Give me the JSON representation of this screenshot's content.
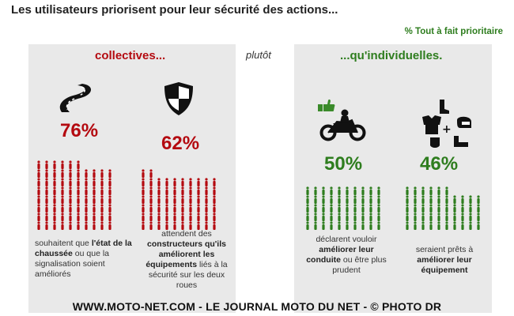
{
  "title": "Les utilisateurs priorisent pour leur sécurité des actions...",
  "legend": "% Tout à fait prioritaire",
  "left_heading": "collectives...",
  "connector": "plutôt",
  "right_heading": "...qu'individuelles.",
  "items": [
    {
      "pct_label": "76%",
      "desc": {
        "a": "souhaitent que ",
        "b": "l'état de la chaussée",
        "c": " ou que la signalisation soient améliorés",
        "d": ""
      }
    },
    {
      "pct_label": "62%",
      "desc": {
        "a": "attendent des ",
        "b": "constructeurs qu'ils améliorent les équipements",
        "c": " liés à la sécurité sur les deux roues",
        "d": ""
      }
    },
    {
      "pct_label": "50%",
      "desc": {
        "a": "déclarent vouloir ",
        "b": "améliorer leur conduite",
        "c": " ou être plus prudent",
        "d": ""
      }
    },
    {
      "pct_label": "46%",
      "desc": {
        "a": "seraient prêts à ",
        "b": "améliorer leur équipement",
        "c": "",
        "d": ""
      }
    }
  ],
  "footer": "WWW.MOTO-NET.COM - LE JOURNAL MOTO DU NET - © PHOTO DR",
  "colors": {
    "red": "#b40a10",
    "green": "#2e7d1e",
    "panel": "#e9e9e9"
  },
  "icons": [
    "road-icon",
    "shield-icon",
    "motorcycle-thumbs-up-icon",
    "rider-equipment-icon"
  ],
  "chart_data": {
    "type": "bar",
    "title": "Les utilisateurs priorisent pour leur sécurité des actions...",
    "categories": [
      "état de la chaussée / signalisation",
      "équipements des constructeurs",
      "améliorer leur conduite",
      "améliorer leur équipement"
    ],
    "series": [
      {
        "name": "% Tout à fait prioritaire",
        "values": [
          76,
          62,
          50,
          46
        ]
      }
    ],
    "groups": [
      "collectives",
      "collectives",
      "individuelles",
      "individuelles"
    ],
    "ylim": [
      0,
      100
    ],
    "unit": "%"
  }
}
